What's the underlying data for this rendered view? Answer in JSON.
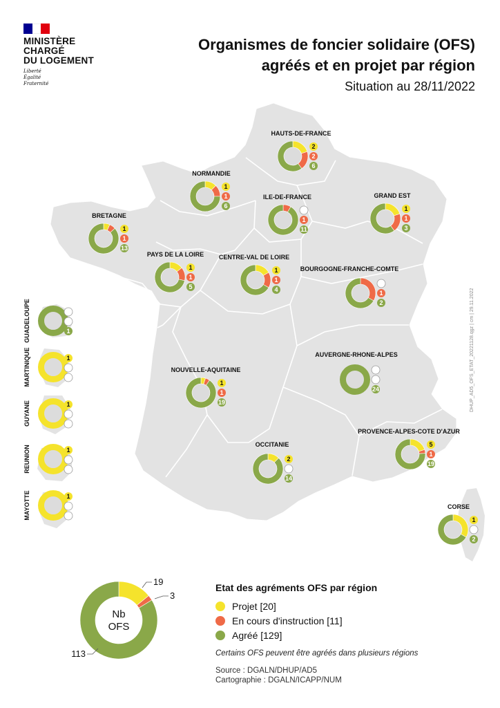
{
  "header": {
    "logo_lines": [
      "MINISTÈRE",
      "CHARGÉ",
      "DU LOGEMENT"
    ],
    "motto_lines": [
      "Liberté",
      "Égalité",
      "Fraternité"
    ],
    "title_line1": "Organismes de foncier solidaire (OFS)",
    "title_line2": "agréés et en projet par région",
    "subtitle": "Situation au 28/11/2022"
  },
  "side_reference": "DHUP_AD5_OFS_ETAT_20221128.qgz | cm | 29.11.2022",
  "colors": {
    "projet": "#f5e32c",
    "instruction": "#ef6a47",
    "agree": "#8aa849",
    "land": "#e3e3e3",
    "border": "#ffffff",
    "inner": "#dcdcdc",
    "flag_blue": "#000091",
    "flag_red": "#e1000f"
  },
  "icons": {
    "flag": "french-flag-icon"
  },
  "regions": [
    {
      "name": "HAUTS-DE-FRANCE",
      "projet": 2,
      "instruction": 2,
      "agree": 6
    },
    {
      "name": "NORMANDIE",
      "projet": 1,
      "instruction": 1,
      "agree": 6
    },
    {
      "name": "ILE-DE-FRANCE",
      "projet": null,
      "instruction": 1,
      "agree": 11
    },
    {
      "name": "GRAND EST",
      "projet": 1,
      "instruction": 1,
      "agree": 3
    },
    {
      "name": "BRETAGNE",
      "projet": 1,
      "instruction": 1,
      "agree": 13
    },
    {
      "name": "PAYS DE LA LOIRE",
      "projet": 1,
      "instruction": 1,
      "agree": 5
    },
    {
      "name": "CENTRE-VAL DE LOIRE",
      "projet": 1,
      "instruction": 1,
      "agree": 4
    },
    {
      "name": "BOURGOGNE-FRANCHE-COMTE",
      "projet": null,
      "instruction": 1,
      "agree": 2
    },
    {
      "name": "AUVERGNE-RHONE-ALPES",
      "projet": null,
      "instruction": null,
      "agree": 24
    },
    {
      "name": "NOUVELLE-AQUITAINE",
      "projet": 1,
      "instruction": 1,
      "agree": 19
    },
    {
      "name": "OCCITANIE",
      "projet": 2,
      "instruction": null,
      "agree": 14
    },
    {
      "name": "PROVENCE-ALPES-COTE D'AZUR",
      "projet": 5,
      "instruction": 1,
      "agree": 19
    },
    {
      "name": "CORSE",
      "projet": 1,
      "instruction": null,
      "agree": 2
    }
  ],
  "overseas": [
    {
      "name": "GUADELOUPE",
      "projet": null,
      "instruction": null,
      "agree": 1
    },
    {
      "name": "MARTINIQUE",
      "projet": 1,
      "instruction": null,
      "agree": null
    },
    {
      "name": "GUYANE",
      "projet": 1,
      "instruction": null,
      "agree": null
    },
    {
      "name": "REUNION",
      "projet": 1,
      "instruction": null,
      "agree": null
    },
    {
      "name": "MAYOTTE",
      "projet": 1,
      "instruction": null,
      "agree": null
    }
  ],
  "summary": {
    "center_line1": "Nb",
    "center_line2": "OFS",
    "projet_count": "19",
    "instruction_count": "3",
    "agree_count": "113",
    "values": {
      "projet": 19,
      "instruction": 3,
      "agree": 113
    }
  },
  "legend": {
    "title": "Etat des agréments OFS par région",
    "items": [
      {
        "label": "Projet [20]",
        "key": "projet"
      },
      {
        "label": "En cours d'instruction [11]",
        "key": "instruction"
      },
      {
        "label": "Agréé [129]",
        "key": "agree"
      }
    ],
    "note": "Certains OFS peuvent être agréés dans plusieurs régions",
    "source": "Source : DGALN/DHUP/AD5",
    "cartography": "Cartographie : DGALN/ICAPP/NUM"
  }
}
